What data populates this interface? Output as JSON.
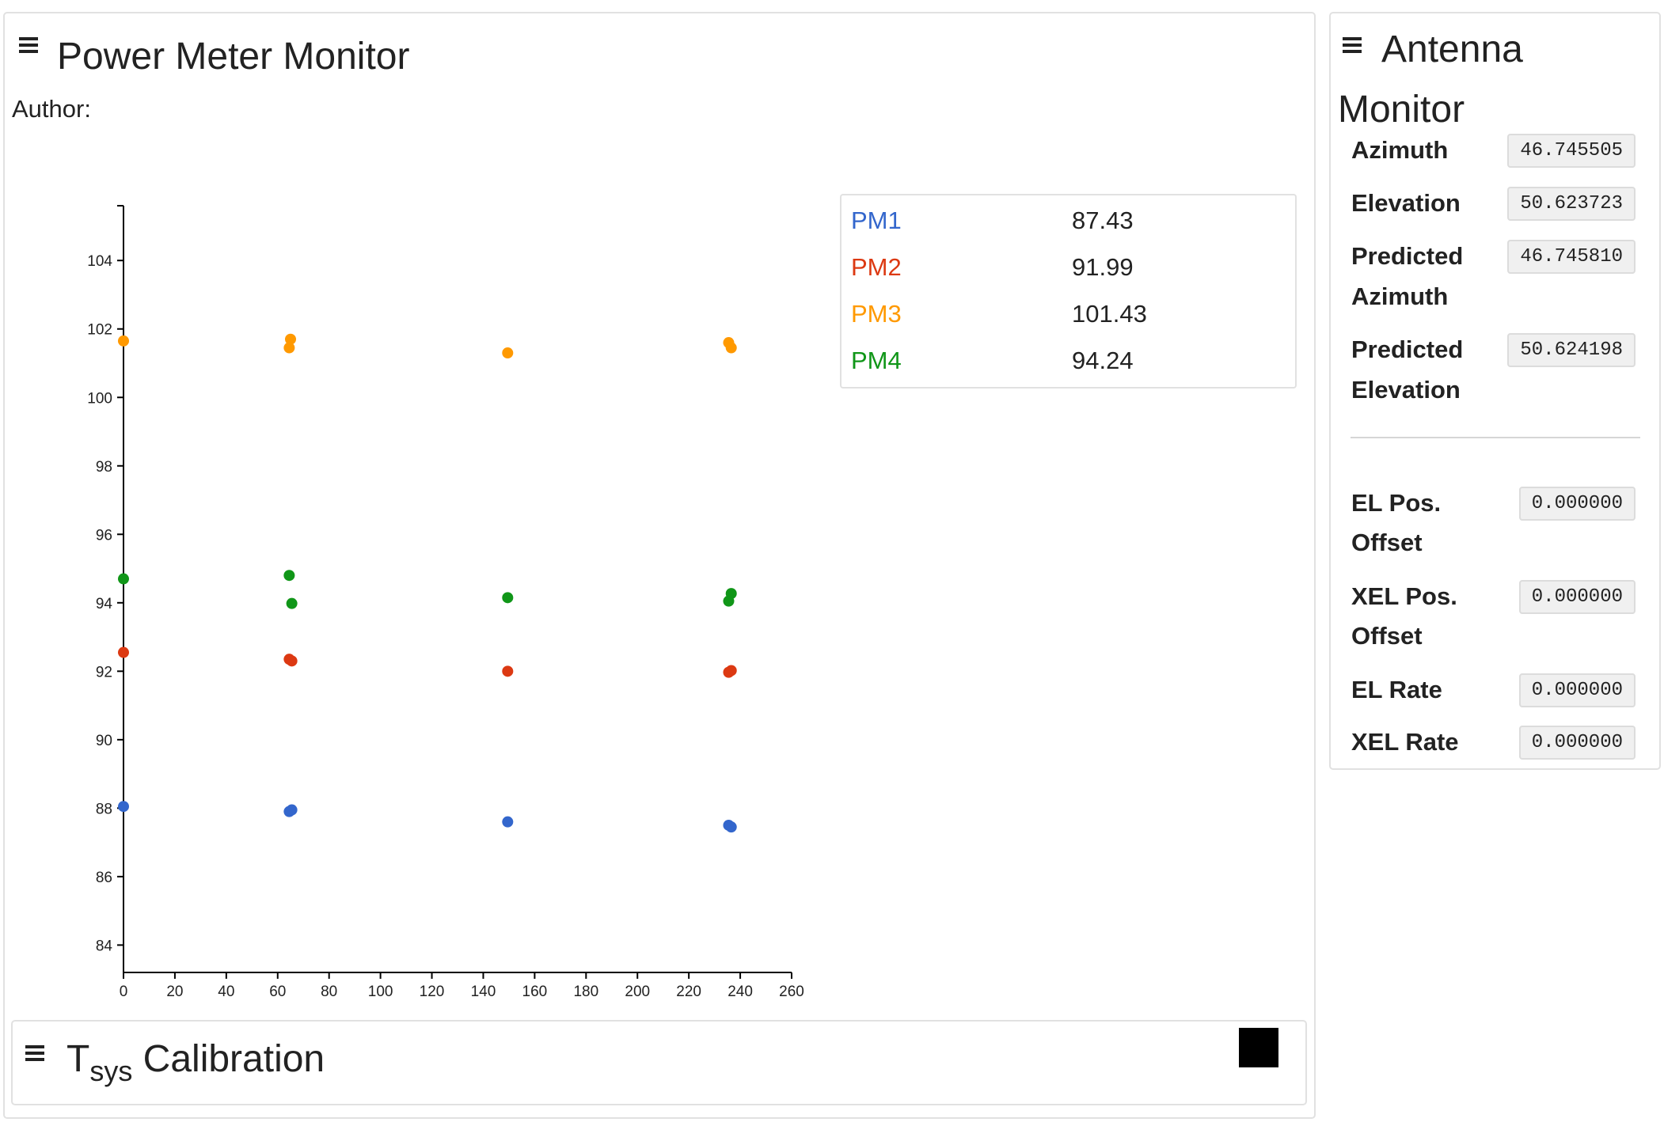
{
  "power_meter": {
    "title": "Power Meter Monitor",
    "author_label": "Author:",
    "legend": [
      {
        "name": "PM1",
        "value": "87.43",
        "color": "#3366cc"
      },
      {
        "name": "PM2",
        "value": "91.99",
        "color": "#dc3912"
      },
      {
        "name": "PM3",
        "value": "101.43",
        "color": "#ff9900"
      },
      {
        "name": "PM4",
        "value": "94.24",
        "color": "#109618"
      }
    ]
  },
  "chart_data": {
    "type": "scatter",
    "xlim": [
      0,
      260
    ],
    "ylim": [
      83.2,
      105.6
    ],
    "x_ticks": [
      0,
      20,
      40,
      60,
      80,
      100,
      120,
      140,
      160,
      180,
      200,
      220,
      240,
      260
    ],
    "y_ticks": [
      84,
      86,
      88,
      90,
      92,
      94,
      96,
      98,
      100,
      102,
      104
    ],
    "grid": false,
    "series": [
      {
        "name": "PM1",
        "color": "#3366cc",
        "points": [
          [
            0,
            88.05
          ],
          [
            64.5,
            87.9
          ],
          [
            65.5,
            87.95
          ],
          [
            149.5,
            87.6
          ],
          [
            235.5,
            87.5
          ],
          [
            236.5,
            87.45
          ]
        ]
      },
      {
        "name": "PM2",
        "color": "#dc3912",
        "points": [
          [
            0,
            92.55
          ],
          [
            64.5,
            92.35
          ],
          [
            65.5,
            92.3
          ],
          [
            149.5,
            92.0
          ],
          [
            235.5,
            91.97
          ],
          [
            236.5,
            92.02
          ]
        ]
      },
      {
        "name": "PM3",
        "color": "#ff9900",
        "points": [
          [
            0,
            101.65
          ],
          [
            64.5,
            101.45
          ],
          [
            65,
            101.7
          ],
          [
            149.5,
            101.3
          ],
          [
            235.5,
            101.6
          ],
          [
            236.5,
            101.45
          ]
        ]
      },
      {
        "name": "PM4",
        "color": "#109618",
        "points": [
          [
            0,
            94.7
          ],
          [
            64.5,
            94.8
          ],
          [
            65.5,
            93.98
          ],
          [
            149.5,
            94.15
          ],
          [
            235.5,
            94.05
          ],
          [
            236.5,
            94.27
          ]
        ]
      }
    ]
  },
  "antenna": {
    "title_line1": "Antenna",
    "title_line2": "Monitor",
    "fields": [
      {
        "label_lines": [
          "Azimuth"
        ],
        "value": "46.745505"
      },
      {
        "label_lines": [
          "Elevation"
        ],
        "value": "50.623723"
      },
      {
        "label_lines": [
          "Predicted",
          "Azimuth"
        ],
        "value": "46.745810"
      },
      {
        "label_lines": [
          "Predicted",
          "Elevation"
        ],
        "value": "50.624198"
      }
    ],
    "offsets": [
      {
        "label_lines": [
          "EL Pos.",
          "Offset"
        ],
        "value": "0.000000"
      },
      {
        "label_lines": [
          "XEL Pos.",
          "Offset"
        ],
        "value": "0.000000"
      },
      {
        "label_lines": [
          "EL Rate"
        ],
        "value": "0.000000"
      },
      {
        "label_lines": [
          "XEL Rate"
        ],
        "value": "0.000000"
      }
    ]
  },
  "tsys": {
    "title_main": "T",
    "title_sub": "sys",
    "title_rest": " Calibration"
  }
}
